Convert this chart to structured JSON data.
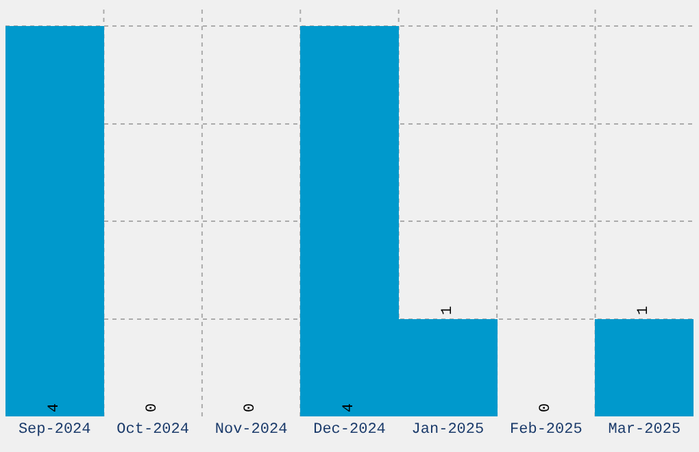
{
  "chart_data": {
    "type": "bar",
    "categories": [
      "Sep-2024",
      "Oct-2024",
      "Nov-2024",
      "Dec-2024",
      "Jan-2025",
      "Feb-2025",
      "Mar-2025"
    ],
    "values": [
      4,
      0,
      0,
      4,
      1,
      0,
      1
    ],
    "color": "#0099cc",
    "data_labels": true,
    "grid": true,
    "tick_labels": "x",
    "legend": false
  }
}
